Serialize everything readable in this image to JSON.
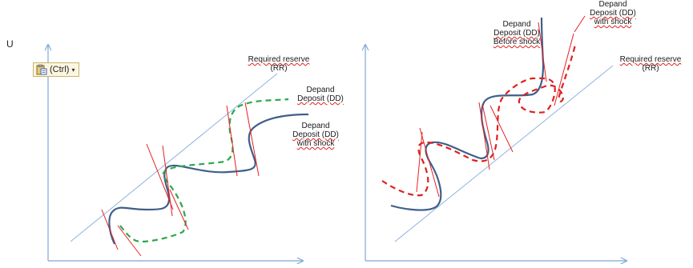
{
  "axis_label_left": "U",
  "paste_button": {
    "label": "(Ctrl)",
    "icon": "clipboard-icon",
    "arrow": "▾"
  },
  "colors": {
    "axis": "#7ea7d8",
    "reserve_line": "#8fb3df",
    "dd_curve": "#3f5f8a",
    "dd_shock_green": "#2aa84a",
    "dd_shock_red": "#e02020",
    "tangent": "#e82020"
  },
  "left_panel": {
    "reserve_label": [
      "Required reserve",
      "(RR)"
    ],
    "dd_label": [
      "Depand",
      "Deposit (DD)"
    ],
    "dd_shock_label": [
      "Depand",
      "Deposit (DD)",
      "with shock"
    ]
  },
  "right_panel": {
    "dd_before_label": [
      "Depand",
      "Deposit (DD)",
      "Before shock"
    ],
    "dd_shock_label": [
      "Depand",
      "Deposit (DD)",
      "with shock"
    ],
    "reserve_label": [
      "Required reserve",
      "(RR)"
    ]
  }
}
